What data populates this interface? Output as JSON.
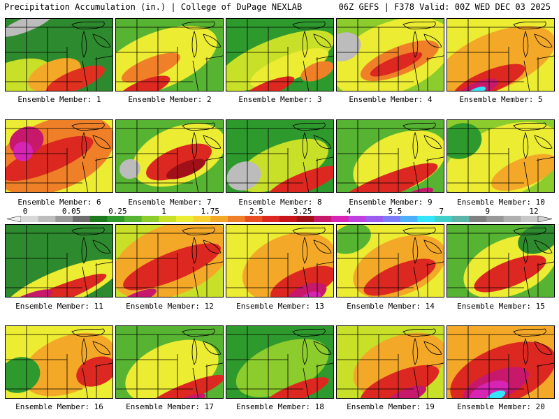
{
  "header": {
    "title": "Precipitation Accumulation (in.) | College of DuPage NEXLAB",
    "run_info": "06Z GEFS | F378 Valid: 00Z WED DEC 03 2025"
  },
  "map": {
    "variable": "Precipitation Accumulation",
    "units": "in.",
    "model": "GEFS",
    "run": "06Z",
    "forecast_hour": "F378",
    "valid": "00Z WED DEC 03 2025",
    "region": "Great Lakes / Midwest"
  },
  "legend": {
    "labels": [
      "0",
      "0.05",
      "0.25",
      "1",
      "1.75",
      "2.5",
      "3.25",
      "4",
      "5.5",
      "7",
      "9",
      "12"
    ],
    "colors": [
      "#d8d8d8",
      "#bcbcbc",
      "#9a9a9a",
      "#6e6e6e",
      "#1c7a1c",
      "#2e9a2e",
      "#56b432",
      "#8ccc2c",
      "#c8e028",
      "#ecec32",
      "#f8d032",
      "#f4a828",
      "#f08028",
      "#e85024",
      "#dc2820",
      "#c81418",
      "#a01018",
      "#c8186c",
      "#d824b4",
      "#c040e0",
      "#9c5cf0",
      "#7c7cf8",
      "#4cb0f8",
      "#34e4f8",
      "#40d0c8",
      "#5cb4a8",
      "#808080",
      "#989898",
      "#b0b0b0",
      "#c8c8c8"
    ]
  },
  "members": [
    {
      "label": "Ensemble Member: 1"
    },
    {
      "label": "Ensemble Member: 2"
    },
    {
      "label": "Ensemble Member: 3"
    },
    {
      "label": "Ensemble Member: 4"
    },
    {
      "label": "Ensemble Member: 5"
    },
    {
      "label": "Ensemble Member: 6"
    },
    {
      "label": "Ensemble Member: 7"
    },
    {
      "label": "Ensemble Member: 8"
    },
    {
      "label": "Ensemble Member: 9"
    },
    {
      "label": "Ensemble Member: 10"
    },
    {
      "label": "Ensemble Member: 11"
    },
    {
      "label": "Ensemble Member: 12"
    },
    {
      "label": "Ensemble Member: 13"
    },
    {
      "label": "Ensemble Member: 14"
    },
    {
      "label": "Ensemble Member: 15"
    },
    {
      "label": "Ensemble Member: 16"
    },
    {
      "label": "Ensemble Member: 17"
    },
    {
      "label": "Ensemble Member: 18"
    },
    {
      "label": "Ensemble Member: 19"
    },
    {
      "label": "Ensemble Member: 20"
    }
  ]
}
